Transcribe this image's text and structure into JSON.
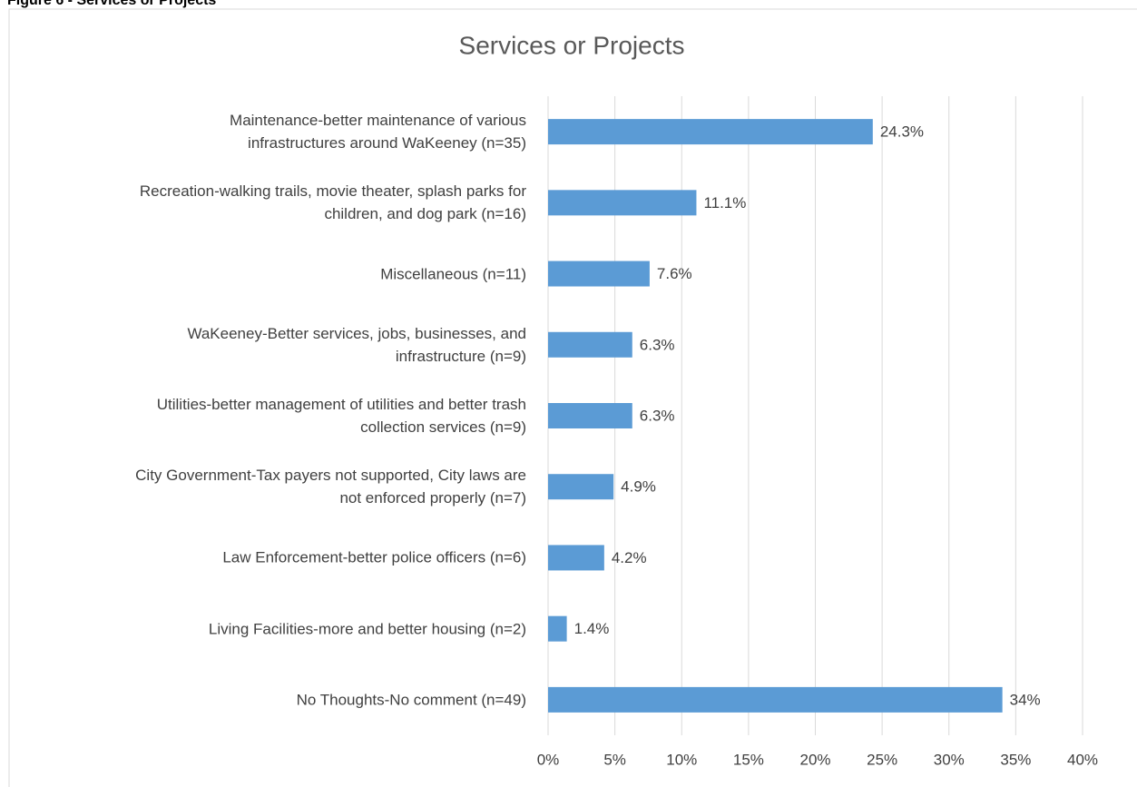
{
  "figure_caption": "Figure 6 - Services or Projects",
  "chart_data": {
    "type": "barh",
    "title": "Services or Projects",
    "categories": [
      "Maintenance-better maintenance of various\ninfrastructures around WaKeeney (n=35)",
      "Recreation-walking trails, movie theater, splash parks for\nchildren, and dog park (n=16)",
      "Miscellaneous (n=11)",
      "WaKeeney-Better services, jobs, businesses, and\ninfrastructure (n=9)",
      "Utilities-better management of utilities and better trash\ncollection services (n=9)",
      "City Government-Tax payers not supported, City laws are\nnot enforced properly (n=7)",
      "Law Enforcement-better police officers (n=6)",
      "Living Facilities-more and better housing (n=2)",
      "No Thoughts-No comment (n=49)"
    ],
    "values": [
      24.3,
      11.1,
      7.6,
      6.3,
      6.3,
      4.9,
      4.2,
      1.4,
      34
    ],
    "value_labels": [
      "24.3%",
      "11.1%",
      "7.6%",
      "6.3%",
      "6.3%",
      "4.9%",
      "4.2%",
      "1.4%",
      "34%"
    ],
    "color": "#5b9bd5",
    "xlim": [
      0,
      40
    ],
    "xticks": [
      {
        "value": 0,
        "label": "0%"
      },
      {
        "value": 5,
        "label": "5%"
      },
      {
        "value": 10,
        "label": "10%"
      },
      {
        "value": 15,
        "label": "15%"
      },
      {
        "value": 20,
        "label": "20%"
      },
      {
        "value": 25,
        "label": "25%"
      },
      {
        "value": 30,
        "label": "30%"
      },
      {
        "value": 35,
        "label": "35%"
      },
      {
        "value": 40,
        "label": "40%"
      }
    ],
    "grid": true
  }
}
